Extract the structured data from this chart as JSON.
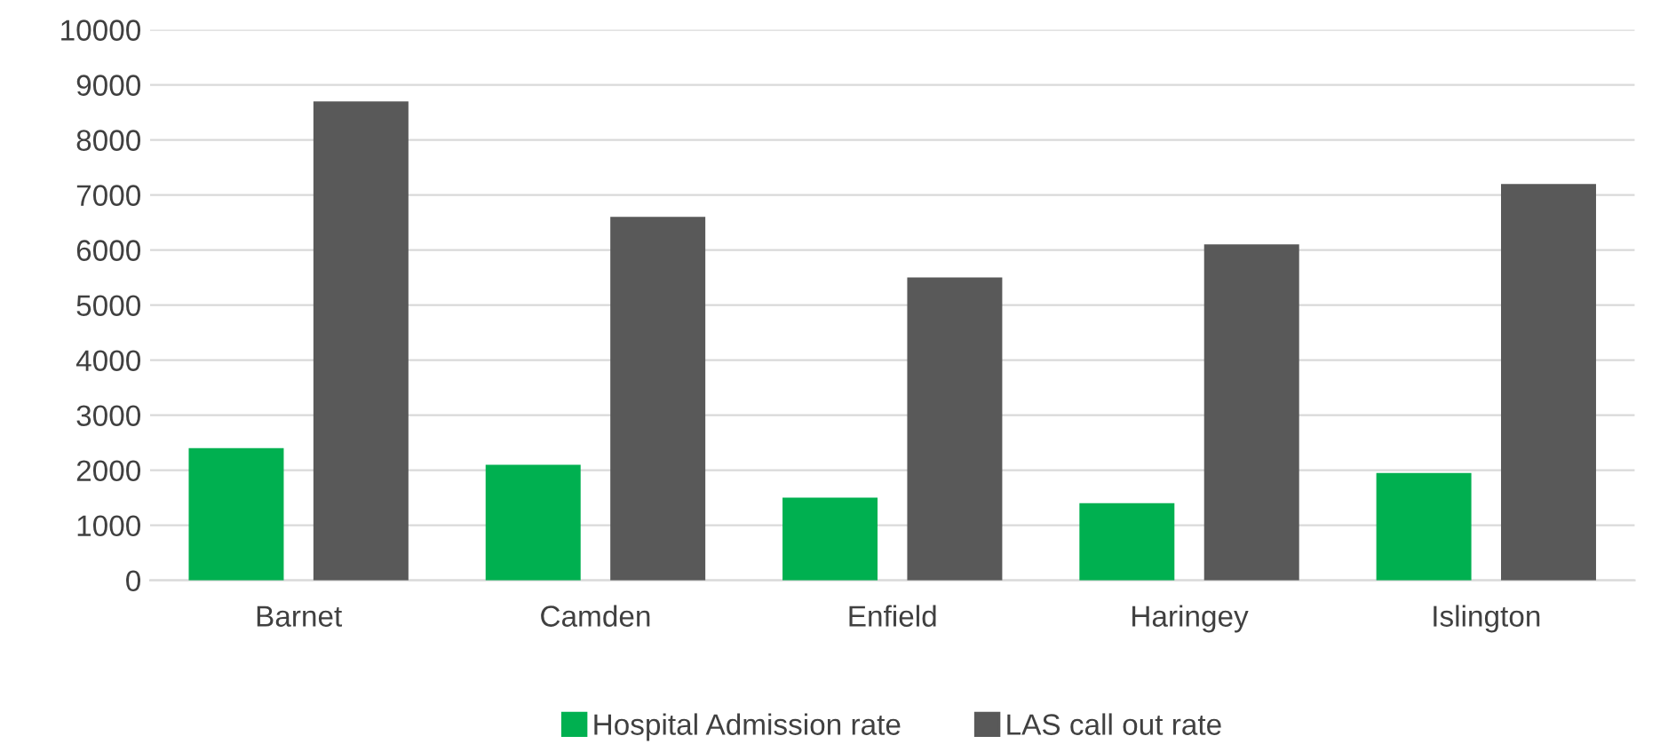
{
  "chart_data": {
    "type": "bar",
    "categories": [
      "Barnet",
      "Camden",
      "Enfield",
      "Haringey",
      "Islington"
    ],
    "series": [
      {
        "name": "Hospital Admission rate",
        "color": "#00b050",
        "values": [
          2400,
          2100,
          1500,
          1400,
          1950
        ]
      },
      {
        "name": "LAS call out rate",
        "color": "#595959",
        "values": [
          8700,
          6600,
          5500,
          6100,
          7200
        ]
      }
    ],
    "ylim": [
      0,
      10000
    ],
    "yticks": [
      0,
      1000,
      2000,
      3000,
      4000,
      5000,
      6000,
      7000,
      8000,
      9000,
      10000
    ],
    "grid": "y",
    "legend": "bottom"
  }
}
